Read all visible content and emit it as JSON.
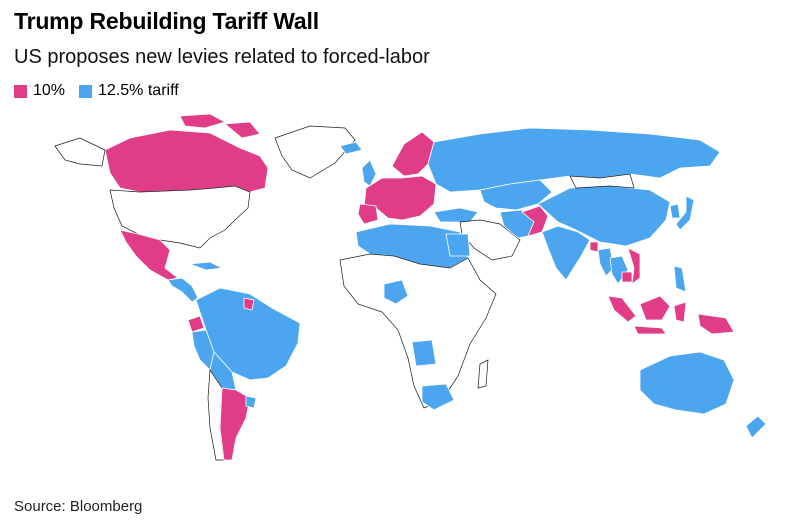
{
  "header": {
    "title": "Trump Rebuilding Tariff Wall",
    "subtitle": "US proposes new levies related to forced-labor"
  },
  "legend": {
    "items": [
      {
        "label": "10%",
        "color": "#e13c87"
      },
      {
        "label": "12.5% tariff",
        "color": "#4ba6ef"
      }
    ]
  },
  "colors": {
    "tariff_10": "#e13c87",
    "tariff_12_5": "#4ba6ef",
    "no_tariff": "#ffffff",
    "border": "#1a1a1a"
  },
  "footer": {
    "source": "Source: Bloomberg"
  }
}
